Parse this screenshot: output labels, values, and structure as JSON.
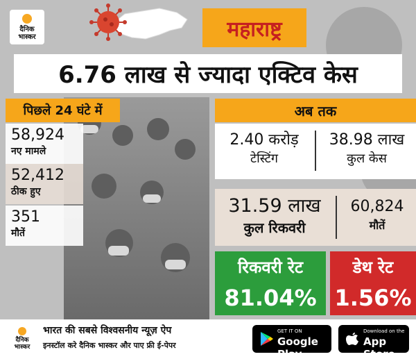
{
  "brand": {
    "line1": "दैनिक",
    "line2": "भास्कर"
  },
  "header": {
    "state": "महाराष्ट्र",
    "headline": "6.76 लाख से ज्यादा एक्टिव केस"
  },
  "last24": {
    "title": "पिछले 24 घंटे में",
    "items": [
      {
        "value": "58,924",
        "label": "नए मामले"
      },
      {
        "value": "52,412",
        "label": "ठीक हुए"
      },
      {
        "value": "351",
        "label": "मौतें"
      }
    ]
  },
  "till_now": {
    "title": "अब तक",
    "testing": {
      "value": "2.40 करोड़",
      "label": "टेस्टिंग"
    },
    "total_cases": {
      "value": "38.98 लाख",
      "label": "कुल केस"
    },
    "total_recovery": {
      "value": "31.59 लाख",
      "label": "कुल रिकवरी"
    },
    "deaths": {
      "value": "60,824",
      "label": "मौतें"
    }
  },
  "rates": {
    "recovery": {
      "label": "रिकवरी रेट",
      "value": "81.04%"
    },
    "death": {
      "label": "डेथ रेट",
      "value": "1.56%"
    }
  },
  "footer": {
    "line1": "भारत की सबसे विश्वसनीय न्यूज़ ऐप",
    "line2": "इनस्टॉल करे दैनिक भास्कर और पाए फ्री ई-पेपर",
    "google_small": "GET IT ON",
    "google_big": "Google Play",
    "apple_small": "Download on the",
    "apple_big": "App Store"
  },
  "colors": {
    "accent_orange": "#f6a61a",
    "state_red": "#c62020",
    "recovery_green": "#2c9d3c",
    "death_red": "#d12a2a"
  },
  "icons": [
    "dainik-bhaskar-logo",
    "coronavirus-icon",
    "maharashtra-map",
    "google-play-icon",
    "apple-icon"
  ]
}
